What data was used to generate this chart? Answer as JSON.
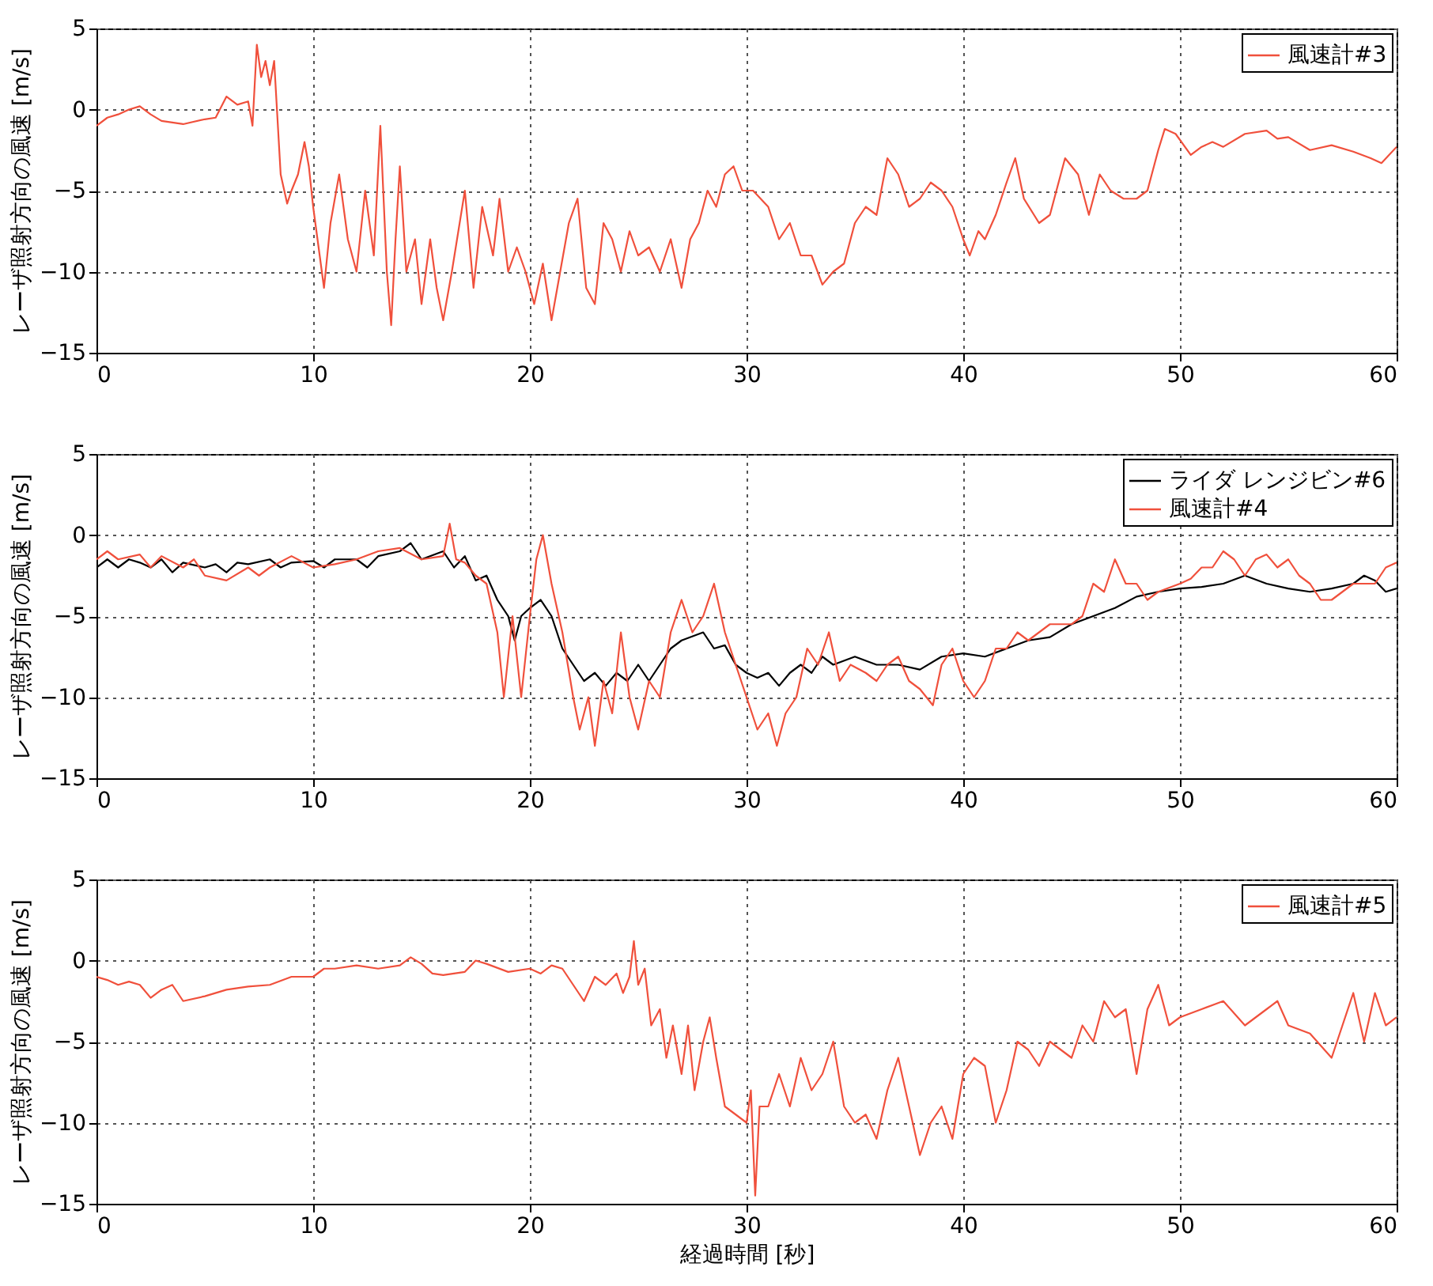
{
  "chart_data": [
    {
      "type": "line",
      "ylabel": "レーザ照射方向の風速 [m/s]",
      "xlim": [
        0,
        60
      ],
      "ylim": [
        -15,
        5
      ],
      "xticks": [
        0,
        10,
        20,
        30,
        40,
        50,
        60
      ],
      "yticks": [
        -15,
        -10,
        -5,
        0,
        5
      ],
      "grid": true,
      "legend": "top right",
      "line_style": "solid",
      "marker": "none",
      "series": [
        {
          "name": "風速計#3",
          "color": "#f0503c",
          "x": [
            0,
            0.5,
            1,
            1.5,
            2,
            2.5,
            3,
            4,
            5,
            5.5,
            6,
            6.5,
            7,
            7.2,
            7.4,
            7.6,
            7.8,
            8,
            8.2,
            8.5,
            8.8,
            9,
            9.3,
            9.6,
            9.8,
            10,
            10.2,
            10.5,
            10.8,
            11.2,
            11.6,
            12,
            12.4,
            12.8,
            13.1,
            13.4,
            13.6,
            13.8,
            14,
            14.3,
            14.7,
            15,
            15.4,
            15.7,
            16,
            16.4,
            17,
            17.4,
            17.8,
            18.3,
            18.6,
            19,
            19.4,
            19.8,
            20.2,
            20.6,
            21,
            21.4,
            21.8,
            22.2,
            22.6,
            23,
            23.4,
            23.8,
            24.2,
            24.6,
            25,
            25.5,
            26,
            26.5,
            27,
            27.4,
            27.8,
            28.2,
            28.6,
            29,
            29.4,
            29.8,
            30.3,
            31,
            31.5,
            32,
            32.5,
            33,
            33.5,
            34,
            34.5,
            35,
            35.5,
            36,
            36.5,
            37,
            37.5,
            38,
            38.5,
            39,
            39.5,
            40,
            40.3,
            40.7,
            41,
            41.5,
            42,
            42.4,
            42.8,
            43.5,
            44,
            44.7,
            45.3,
            45.8,
            46.3,
            46.8,
            47.4,
            48,
            48.5,
            49,
            49.3,
            49.8,
            50.5,
            51,
            51.5,
            52,
            53,
            54,
            54.5,
            55,
            56,
            57,
            58,
            58.8,
            59.3,
            60
          ],
          "values": [
            -1,
            -0.5,
            -0.3,
            0,
            0.2,
            -0.3,
            -0.7,
            -0.9,
            -0.6,
            -0.5,
            0.8,
            0.3,
            0.5,
            -1,
            4,
            2,
            3,
            1.5,
            3,
            -4,
            -5.8,
            -5,
            -4,
            -2,
            -3.5,
            -6,
            -8,
            -11,
            -7,
            -4,
            -8,
            -10,
            -5,
            -9,
            -1,
            -10,
            -13.3,
            -8,
            -3.5,
            -10,
            -8,
            -12,
            -8,
            -11,
            -13,
            -10,
            -5,
            -11,
            -6,
            -9,
            -5.5,
            -10,
            -8.5,
            -10,
            -12,
            -9.5,
            -13,
            -10,
            -7,
            -5.5,
            -11,
            -12,
            -7,
            -8,
            -10,
            -7.5,
            -9,
            -8.5,
            -10,
            -8,
            -11,
            -8,
            -7,
            -5,
            -6,
            -4,
            -3.5,
            -5,
            -5,
            -6,
            -8,
            -7,
            -9,
            -9,
            -10.8,
            -10,
            -9.5,
            -7,
            -6,
            -6.5,
            -3,
            -4,
            -6,
            -5.5,
            -4.5,
            -5,
            -6,
            -8,
            -9,
            -7.5,
            -8,
            -6.5,
            -4.5,
            -3,
            -5.5,
            -7,
            -6.5,
            -3,
            -4,
            -6.5,
            -4,
            -5,
            -5.5,
            -5.5,
            -5,
            -2.5,
            -1.2,
            -1.5,
            -2.8,
            -2.3,
            -2,
            -2.3,
            -1.5,
            -1.3,
            -1.8,
            -1.7,
            -2.5,
            -2.2,
            -2.6,
            -3,
            -3.3,
            -2.3
          ]
        }
      ]
    },
    {
      "type": "line",
      "ylabel": "レーザ照射方向の風速 [m/s]",
      "xlim": [
        0,
        60
      ],
      "ylim": [
        -15,
        5
      ],
      "xticks": [
        0,
        10,
        20,
        30,
        40,
        50,
        60
      ],
      "yticks": [
        -15,
        -10,
        -5,
        0,
        5
      ],
      "grid": true,
      "legend": "top right",
      "line_style": "solid",
      "marker": "none",
      "series": [
        {
          "name": "ライダ レンジビン#6",
          "color": "#000000",
          "x": [
            0,
            0.5,
            1,
            1.5,
            2,
            2.5,
            3,
            3.5,
            4,
            5,
            5.5,
            6,
            6.5,
            7,
            8,
            8.5,
            9,
            10,
            10.5,
            11,
            12,
            12.5,
            13,
            14,
            14.5,
            15,
            16,
            16.5,
            17,
            17.5,
            18,
            18.5,
            19,
            19.3,
            19.6,
            20,
            20.5,
            21,
            21.5,
            22,
            22.5,
            23,
            23.5,
            24,
            24.5,
            25,
            25.5,
            26,
            26.5,
            27,
            28,
            28.5,
            29,
            29.5,
            30,
            30.5,
            31,
            31.5,
            32,
            32.5,
            33,
            33.5,
            34,
            35,
            36,
            37,
            38,
            39,
            40,
            41,
            42,
            43,
            44,
            45,
            46,
            47,
            48,
            49,
            50,
            51,
            52,
            53,
            54,
            55,
            56,
            57,
            58,
            58.5,
            59,
            59.5,
            60
          ],
          "values": [
            -2,
            -1.5,
            -2,
            -1.5,
            -1.7,
            -2,
            -1.5,
            -2.3,
            -1.7,
            -2,
            -1.8,
            -2.3,
            -1.7,
            -1.8,
            -1.5,
            -2,
            -1.7,
            -1.6,
            -2,
            -1.5,
            -1.5,
            -2,
            -1.3,
            -1,
            -0.5,
            -1.5,
            -1,
            -2,
            -1.3,
            -2.8,
            -2.5,
            -4,
            -5,
            -6.5,
            -5,
            -4.5,
            -4,
            -5,
            -7,
            -8,
            -9,
            -8.5,
            -9.3,
            -8.5,
            -9,
            -8,
            -9,
            -8,
            -7,
            -6.5,
            -6,
            -7,
            -6.8,
            -8,
            -8.5,
            -8.8,
            -8.5,
            -9.3,
            -8.5,
            -8,
            -8.5,
            -7.5,
            -8,
            -7.5,
            -8,
            -8,
            -8.3,
            -7.5,
            -7.3,
            -7.5,
            -7,
            -6.5,
            -6.3,
            -5.5,
            -5,
            -4.5,
            -3.8,
            -3.5,
            -3.3,
            -3.2,
            -3,
            -2.5,
            -3,
            -3.3,
            -3.5,
            -3.3,
            -3,
            -2.5,
            -2.8,
            -3.5,
            -3.3
          ]
        },
        {
          "name": "風速計#4",
          "color": "#f0503c",
          "x": [
            0,
            0.5,
            1,
            2,
            2.5,
            3,
            4,
            4.5,
            5,
            6,
            7,
            7.5,
            8,
            9,
            10,
            11,
            12,
            13,
            14,
            15,
            16,
            16.3,
            16.6,
            17,
            17.5,
            18,
            18.5,
            18.8,
            19.2,
            19.6,
            20,
            20.3,
            20.6,
            21,
            21.5,
            22,
            22.3,
            22.7,
            23,
            23.4,
            23.8,
            24.2,
            24.6,
            25,
            25.5,
            26,
            26.5,
            27,
            27.5,
            28,
            28.5,
            29,
            29.5,
            30,
            30.5,
            31,
            31.4,
            31.8,
            32.3,
            32.8,
            33.3,
            33.8,
            34.3,
            34.8,
            35.5,
            36,
            36.5,
            37,
            37.5,
            38,
            38.6,
            39,
            39.5,
            40,
            40.5,
            41,
            41.5,
            42,
            42.5,
            43,
            43.5,
            44,
            45,
            45.5,
            46,
            46.5,
            47,
            47.5,
            48,
            48.5,
            49,
            50,
            50.5,
            51,
            51.5,
            52,
            52.5,
            53,
            53.5,
            54,
            54.5,
            55,
            55.5,
            56,
            56.5,
            57,
            57.5,
            58,
            59,
            59.5,
            60
          ],
          "values": [
            -1.5,
            -1,
            -1.5,
            -1.2,
            -2,
            -1.3,
            -2,
            -1.5,
            -2.5,
            -2.8,
            -2,
            -2.5,
            -2,
            -1.3,
            -2,
            -1.8,
            -1.5,
            -1,
            -0.8,
            -1.5,
            -1.3,
            0.7,
            -1.5,
            -1.7,
            -2.5,
            -3,
            -6,
            -10,
            -5,
            -10,
            -5,
            -1.5,
            0,
            -3,
            -6,
            -10,
            -12,
            -10,
            -13,
            -9,
            -11,
            -6,
            -10,
            -12,
            -9,
            -10,
            -6,
            -4,
            -6,
            -5,
            -3,
            -6,
            -8,
            -10,
            -12,
            -11,
            -13,
            -11,
            -10,
            -7,
            -8,
            -6,
            -9,
            -8,
            -8.5,
            -9,
            -8,
            -7.5,
            -9,
            -9.5,
            -10.5,
            -8,
            -7,
            -9,
            -10,
            -9,
            -7,
            -7,
            -6,
            -6.5,
            -6,
            -5.5,
            -5.5,
            -5,
            -3,
            -3.5,
            -1.5,
            -3,
            -3,
            -4,
            -3.5,
            -3,
            -2.7,
            -2,
            -2,
            -1,
            -1.5,
            -2.5,
            -1.5,
            -1.2,
            -2,
            -1.5,
            -2.5,
            -3,
            -4,
            -4,
            -3.5,
            -3,
            -3,
            -2,
            -1.7
          ]
        }
      ]
    },
    {
      "type": "line",
      "xlabel": "経過時間 [秒]",
      "ylabel": "レーザ照射方向の風速 [m/s]",
      "xlim": [
        0,
        60
      ],
      "ylim": [
        -15,
        5
      ],
      "xticks": [
        0,
        10,
        20,
        30,
        40,
        50,
        60
      ],
      "yticks": [
        -15,
        -10,
        -5,
        0,
        5
      ],
      "grid": true,
      "legend": "top right",
      "line_style": "solid",
      "marker": "none",
      "series": [
        {
          "name": "風速計#5",
          "color": "#f0503c",
          "x": [
            0,
            0.5,
            1,
            1.5,
            2,
            2.5,
            3,
            3.5,
            4,
            5,
            6,
            7,
            8,
            9,
            10,
            10.5,
            11,
            12,
            13,
            14,
            14.5,
            15,
            15.5,
            16,
            17,
            17.5,
            18,
            19,
            20,
            20.5,
            21,
            21.5,
            22,
            22.5,
            23,
            23.5,
            24,
            24.3,
            24.6,
            24.8,
            25,
            25.3,
            25.6,
            26,
            26.3,
            26.6,
            27,
            27.3,
            27.6,
            28,
            28.3,
            28.6,
            29,
            29.5,
            30,
            30.2,
            30.4,
            30.6,
            31,
            31.5,
            32,
            32.5,
            33,
            33.5,
            34,
            34.5,
            35,
            35.5,
            36,
            36.5,
            37,
            37.5,
            38,
            38.5,
            39,
            39.5,
            40,
            40.5,
            41,
            41.5,
            42,
            42.5,
            43,
            43.5,
            44,
            45,
            45.5,
            46,
            46.5,
            47,
            47.5,
            48,
            48.5,
            49,
            49.5,
            50,
            51,
            52,
            53,
            54,
            54.5,
            55,
            56,
            57,
            57.5,
            58,
            58.5,
            59,
            59.5,
            60
          ],
          "values": [
            -1,
            -1.2,
            -1.5,
            -1.3,
            -1.5,
            -2.3,
            -1.8,
            -1.5,
            -2.5,
            -2.2,
            -1.8,
            -1.6,
            -1.5,
            -1,
            -1,
            -0.5,
            -0.5,
            -0.3,
            -0.5,
            -0.3,
            0.2,
            -0.2,
            -0.8,
            -0.9,
            -0.7,
            0,
            -0.2,
            -0.7,
            -0.5,
            -0.8,
            -0.3,
            -0.5,
            -1.5,
            -2.5,
            -1,
            -1.5,
            -0.8,
            -2,
            -1,
            1.2,
            -1.5,
            -0.5,
            -4,
            -3,
            -6,
            -4,
            -7,
            -4,
            -8,
            -5,
            -3.5,
            -6,
            -9,
            -9.5,
            -10,
            -8,
            -14.5,
            -9,
            -9,
            -7,
            -9,
            -6,
            -8,
            -7,
            -5,
            -9,
            -10,
            -9.5,
            -11,
            -8,
            -6,
            -9,
            -12,
            -10,
            -9,
            -11,
            -7,
            -6,
            -6.5,
            -10,
            -8,
            -5,
            -5.5,
            -6.5,
            -5,
            -6,
            -4,
            -5,
            -2.5,
            -3.5,
            -3,
            -7,
            -3,
            -1.5,
            -4,
            -3.5,
            -3,
            -2.5,
            -4,
            -3,
            -2.5,
            -4,
            -4.5,
            -6,
            -4,
            -2,
            -5,
            -2,
            -4,
            -3.5
          ]
        }
      ]
    }
  ]
}
